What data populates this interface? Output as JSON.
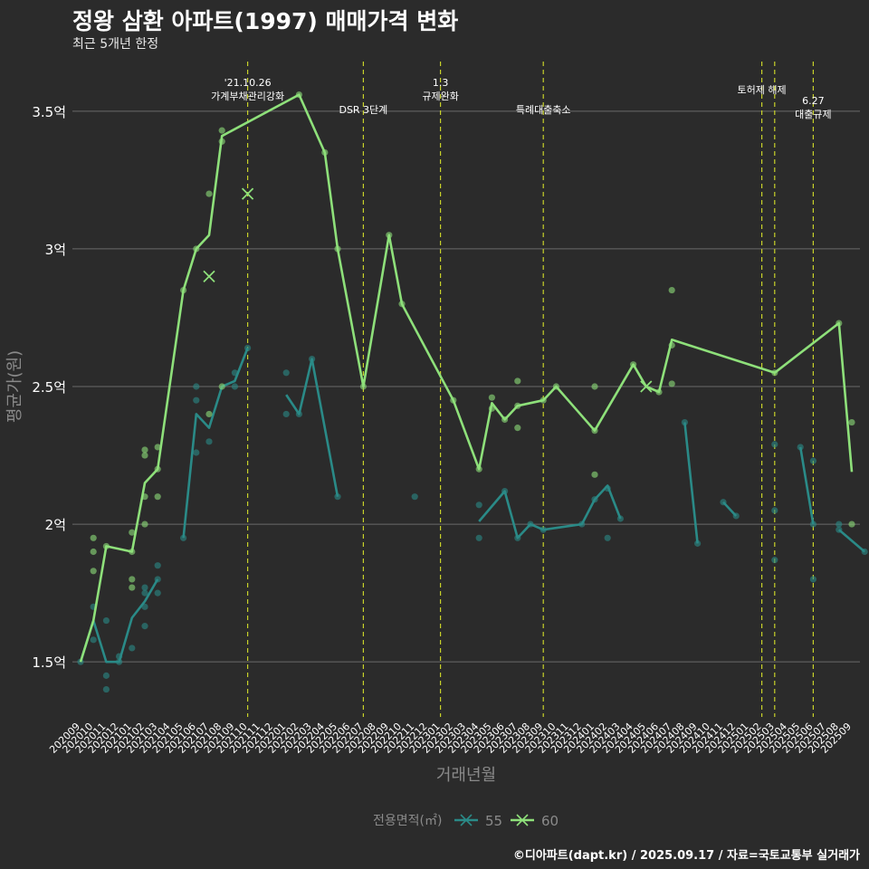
{
  "title": "정왕 삼환 아파트(1997) 매매가격 변화",
  "subtitle": "최근 5개년 한정",
  "caption": "©디아파트(dapt.kr) / 2025.09.17 / 자료=국토교통부 실거래가",
  "colors": {
    "background": "#2b2b2b",
    "s55": "#2a8a87",
    "s60": "#8ee07a",
    "vline": "#c8d22a",
    "grid": "#6a6a6a"
  },
  "chart_data": {
    "type": "line",
    "xlabel": "거래년월",
    "ylabel": "평균가(원)",
    "ylim": [
      1.3,
      3.7
    ],
    "yticks": [
      {
        "v": 1.5,
        "label": "1.5억"
      },
      {
        "v": 2.0,
        "label": "2억"
      },
      {
        "v": 2.5,
        "label": "2.5억"
      },
      {
        "v": 3.0,
        "label": "3억"
      },
      {
        "v": 3.5,
        "label": "3.5억"
      }
    ],
    "categories": [
      "202009",
      "202010",
      "202011",
      "202012",
      "202101",
      "202102",
      "202103",
      "202104",
      "202105",
      "202106",
      "202107",
      "202108",
      "202109",
      "202110",
      "202111",
      "202112",
      "202201",
      "202202",
      "202203",
      "202204",
      "202205",
      "202206",
      "202207",
      "202208",
      "202209",
      "202210",
      "202211",
      "202212",
      "202301",
      "202302",
      "202303",
      "202304",
      "202305",
      "202306",
      "202307",
      "202308",
      "202309",
      "202310",
      "202311",
      "202312",
      "202401",
      "202402",
      "202403",
      "202404",
      "202405",
      "202406",
      "202407",
      "202408",
      "202409",
      "202410",
      "202411",
      "202412",
      "202501",
      "202502",
      "202503",
      "202504",
      "202505",
      "202506",
      "202507",
      "202508",
      "202509"
    ],
    "legend_title": "전용면적(㎡)",
    "legend_position": "bottom",
    "series": [
      {
        "name": "55",
        "color": "#2a8a87",
        "segments": [
          [
            [
              0,
              1.5
            ],
            [
              1,
              1.65
            ],
            [
              2,
              1.5
            ],
            [
              3,
              1.5
            ],
            [
              4,
              1.66
            ],
            [
              5,
              1.72
            ],
            [
              6,
              1.8
            ]
          ],
          [
            [
              8,
              1.95
            ],
            [
              9,
              2.4
            ],
            [
              10,
              2.35
            ],
            [
              11,
              2.5
            ],
            [
              12,
              2.52
            ],
            [
              13,
              2.64
            ]
          ],
          [
            [
              16,
              2.47
            ],
            [
              17,
              2.4
            ],
            [
              18,
              2.6
            ],
            [
              20,
              2.1
            ]
          ],
          [
            [
              31,
              2.01
            ],
            [
              33,
              2.12
            ],
            [
              34,
              1.95
            ],
            [
              35,
              2.0
            ],
            [
              36,
              1.98
            ],
            [
              39,
              2.0
            ],
            [
              40,
              2.09
            ],
            [
              41,
              2.14
            ],
            [
              42,
              2.02
            ]
          ],
          [
            [
              47,
              2.37
            ],
            [
              48,
              1.93
            ]
          ],
          [
            [
              50,
              2.08
            ],
            [
              51,
              2.03
            ]
          ],
          [
            [
              56,
              2.28
            ],
            [
              57,
              2.0
            ]
          ],
          [
            [
              59,
              1.98
            ],
            [
              61,
              1.9
            ]
          ]
        ],
        "points": [
          [
            0,
            1.5
          ],
          [
            1,
            1.7
          ],
          [
            1,
            1.58
          ],
          [
            2,
            1.65
          ],
          [
            2,
            1.45
          ],
          [
            2,
            1.4
          ],
          [
            3,
            1.52
          ],
          [
            3,
            1.5
          ],
          [
            4,
            1.55
          ],
          [
            5,
            1.77
          ],
          [
            5,
            1.75
          ],
          [
            5,
            1.7
          ],
          [
            5,
            1.63
          ],
          [
            6,
            1.85
          ],
          [
            6,
            1.8
          ],
          [
            6,
            1.75
          ],
          [
            8,
            1.95
          ],
          [
            9,
            2.5
          ],
          [
            9,
            2.45
          ],
          [
            9,
            2.26
          ],
          [
            10,
            2.3
          ],
          [
            12,
            2.55
          ],
          [
            12,
            2.5
          ],
          [
            13,
            2.64
          ],
          [
            16,
            2.55
          ],
          [
            16,
            2.4
          ],
          [
            17,
            2.4
          ],
          [
            18,
            2.6
          ],
          [
            20,
            2.1
          ],
          [
            26,
            2.1
          ],
          [
            31,
            2.07
          ],
          [
            31,
            1.95
          ],
          [
            33,
            2.12
          ],
          [
            34,
            1.95
          ],
          [
            35,
            2.0
          ],
          [
            36,
            1.98
          ],
          [
            39,
            2.0
          ],
          [
            40,
            2.09
          ],
          [
            41,
            1.95
          ],
          [
            41,
            2.13
          ],
          [
            42,
            2.02
          ],
          [
            47,
            2.37
          ],
          [
            48,
            1.93
          ],
          [
            50,
            2.08
          ],
          [
            51,
            2.03
          ],
          [
            54,
            2.29
          ],
          [
            54,
            2.05
          ],
          [
            54,
            1.87
          ],
          [
            56,
            2.28
          ],
          [
            57,
            2.23
          ],
          [
            57,
            2.0
          ],
          [
            57,
            1.8
          ],
          [
            59,
            2.0
          ],
          [
            59,
            1.98
          ],
          [
            61,
            1.9
          ]
        ],
        "crosses": []
      },
      {
        "name": "60",
        "color": "#8ee07a",
        "segments": [
          [
            [
              0,
              1.5
            ],
            [
              1,
              1.65
            ],
            [
              2,
              1.92
            ],
            [
              4,
              1.9
            ],
            [
              5,
              2.15
            ],
            [
              6,
              2.2
            ],
            [
              8,
              2.85
            ],
            [
              9,
              3.0
            ],
            [
              10,
              3.05
            ],
            [
              11,
              3.41
            ],
            [
              17,
              3.56
            ],
            [
              19,
              3.35
            ],
            [
              20,
              3.0
            ],
            [
              22,
              2.5
            ],
            [
              24,
              3.05
            ],
            [
              25,
              2.8
            ],
            [
              29,
              2.45
            ],
            [
              31,
              2.2
            ],
            [
              32,
              2.44
            ],
            [
              33,
              2.38
            ],
            [
              34,
              2.43
            ],
            [
              36,
              2.45
            ],
            [
              37,
              2.5
            ],
            [
              40,
              2.34
            ],
            [
              43,
              2.58
            ],
            [
              44,
              2.5
            ],
            [
              45,
              2.48
            ],
            [
              46,
              2.67
            ],
            [
              54,
              2.55
            ],
            [
              59,
              2.73
            ],
            [
              60,
              2.19
            ]
          ]
        ],
        "points": [
          [
            1,
            1.95
          ],
          [
            1,
            1.9
          ],
          [
            1,
            1.83
          ],
          [
            2,
            1.92
          ],
          [
            4,
            1.97
          ],
          [
            4,
            1.9
          ],
          [
            4,
            1.8
          ],
          [
            4,
            1.77
          ],
          [
            5,
            2.27
          ],
          [
            5,
            2.25
          ],
          [
            5,
            2.1
          ],
          [
            5,
            2.0
          ],
          [
            6,
            2.28
          ],
          [
            6,
            2.2
          ],
          [
            6,
            2.1
          ],
          [
            8,
            2.85
          ],
          [
            9,
            3.0
          ],
          [
            10,
            3.2
          ],
          [
            10,
            2.4
          ],
          [
            11,
            3.43
          ],
          [
            11,
            3.39
          ],
          [
            11,
            2.5
          ],
          [
            17,
            3.56
          ],
          [
            19,
            3.35
          ],
          [
            20,
            3.0
          ],
          [
            22,
            2.5
          ],
          [
            24,
            3.05
          ],
          [
            25,
            2.8
          ],
          [
            29,
            2.45
          ],
          [
            31,
            2.2
          ],
          [
            32,
            2.46
          ],
          [
            32,
            2.42
          ],
          [
            33,
            2.38
          ],
          [
            34,
            2.52
          ],
          [
            34,
            2.43
          ],
          [
            34,
            2.35
          ],
          [
            36,
            2.45
          ],
          [
            37,
            2.5
          ],
          [
            40,
            2.5
          ],
          [
            40,
            2.34
          ],
          [
            40,
            2.18
          ],
          [
            43,
            2.58
          ],
          [
            45,
            2.48
          ],
          [
            46,
            2.85
          ],
          [
            46,
            2.65
          ],
          [
            46,
            2.51
          ],
          [
            54,
            2.55
          ],
          [
            59,
            2.73
          ],
          [
            60,
            2.37
          ],
          [
            60,
            2.0
          ]
        ],
        "crosses": [
          [
            10,
            2.9
          ],
          [
            13,
            3.2
          ],
          [
            44,
            2.5
          ]
        ]
      }
    ],
    "vlines": [
      {
        "x": 13,
        "label": [
          "'21.10.26",
          "가계부채관리강화"
        ],
        "level": 0
      },
      {
        "x": 22,
        "label": [
          "DSR 3단계"
        ],
        "level": 1
      },
      {
        "x": 28,
        "label": [
          "1.3",
          "규제완화"
        ],
        "level": 0
      },
      {
        "x": 36,
        "label": [
          "특례대출축소"
        ],
        "level": 1
      },
      {
        "x": 53,
        "label": [
          "토허제 해제"
        ],
        "level": 0
      },
      {
        "x": 54,
        "label": [],
        "level": 0
      },
      {
        "x": 57,
        "label": [
          "6.27",
          "대출규제"
        ],
        "level": 2
      }
    ]
  }
}
